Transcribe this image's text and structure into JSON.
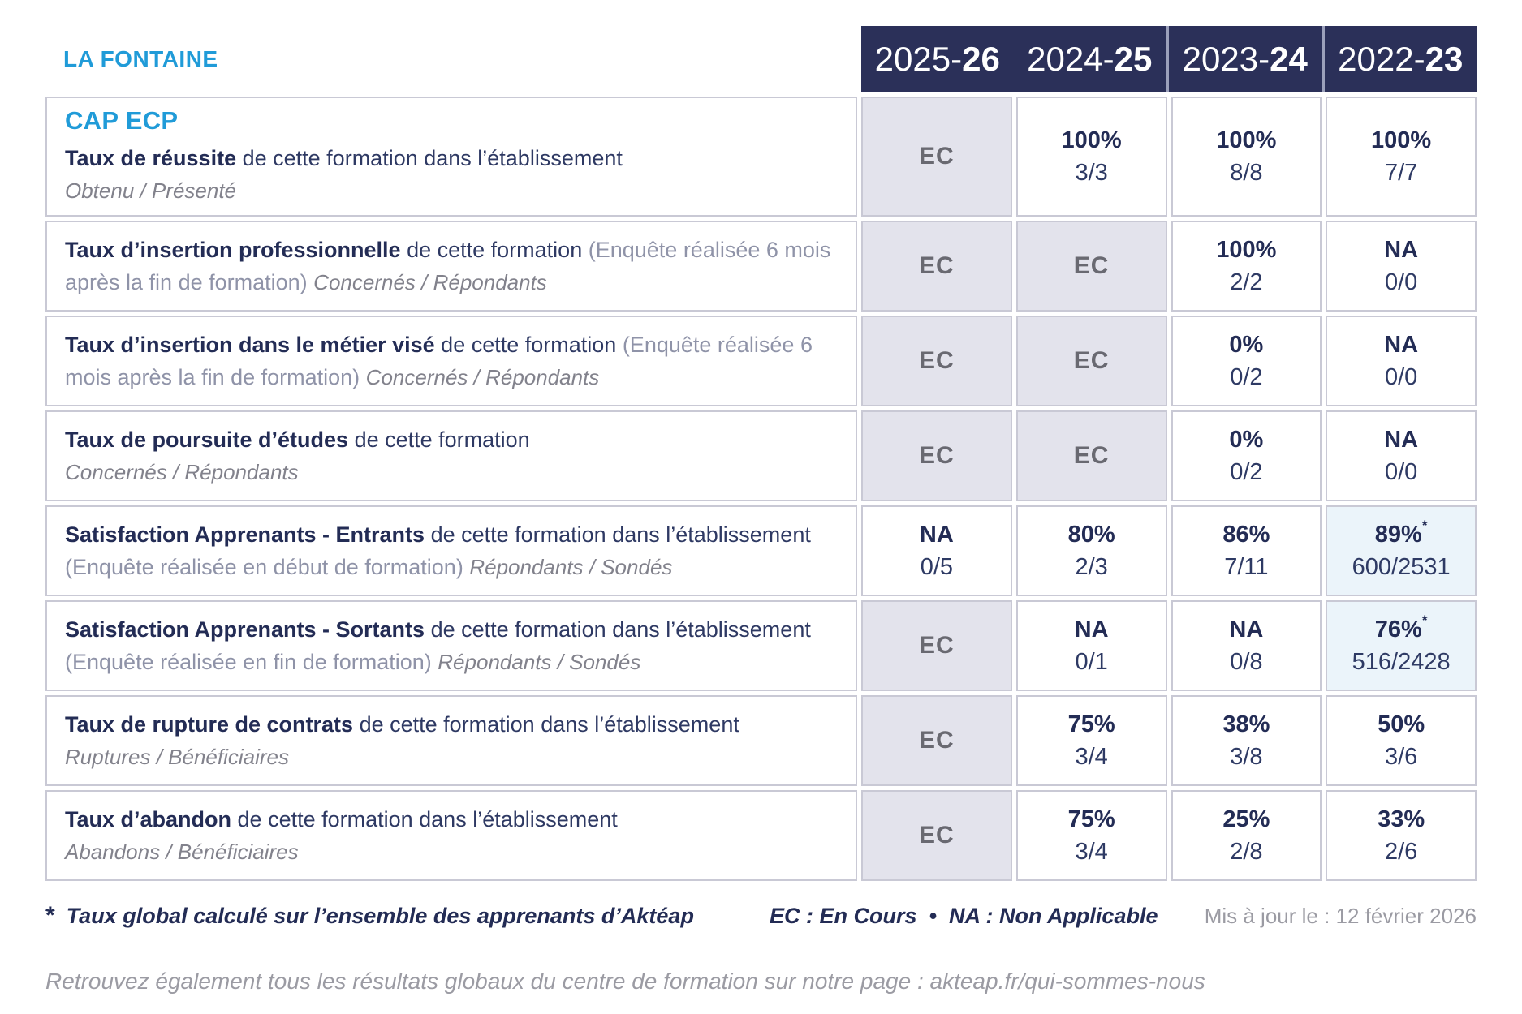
{
  "org": "LA FONTAINE",
  "program": "CAP ECP",
  "colors": {
    "navy": "#2b3059",
    "accent_blue": "#209bd8",
    "lavender_cell": "#e3e3ec",
    "pale_blue_cell": "#ebf4fa",
    "border_gray": "#c9c9d5"
  },
  "years": [
    {
      "pre": "2025-",
      "bold": "26"
    },
    {
      "pre": "2024-",
      "bold": "25"
    },
    {
      "pre": "2023-",
      "bold": "24"
    },
    {
      "pre": "2022-",
      "bold": "23"
    }
  ],
  "rows": [
    {
      "label_bold": "Taux de réussite",
      "label_rest": "de cette formation dans l’établissement",
      "label_note": "",
      "label_sub": "Obtenu / Présenté",
      "cells": [
        {
          "v": "EC"
        },
        {
          "v": "100%",
          "sub": "3/3"
        },
        {
          "v": "100%",
          "sub": "8/8"
        },
        {
          "v": "100%",
          "sub": "7/7"
        }
      ]
    },
    {
      "label_bold": "Taux d’insertion professionnelle",
      "label_rest": "de cette formation",
      "label_note": "(Enquête réalisée 6 mois après la fin de formation)",
      "label_sub": "Concernés / Répondants",
      "cells": [
        {
          "v": "EC"
        },
        {
          "v": "EC"
        },
        {
          "v": "100%",
          "sub": "2/2"
        },
        {
          "v": "NA",
          "sub": "0/0"
        }
      ]
    },
    {
      "label_bold": "Taux d’insertion dans le métier visé",
      "label_rest": "de cette formation",
      "label_note": "(Enquête réalisée 6 mois après la fin de formation)",
      "label_sub": "Concernés / Répondants",
      "cells": [
        {
          "v": "EC"
        },
        {
          "v": "EC"
        },
        {
          "v": "0%",
          "sub": "0/2"
        },
        {
          "v": "NA",
          "sub": "0/0"
        }
      ]
    },
    {
      "label_bold": "Taux de poursuite d’études",
      "label_rest": "de cette formation",
      "label_note": "",
      "label_sub": "Concernés / Répondants",
      "cells": [
        {
          "v": "EC"
        },
        {
          "v": "EC"
        },
        {
          "v": "0%",
          "sub": "0/2"
        },
        {
          "v": "NA",
          "sub": "0/0"
        }
      ]
    },
    {
      "label_bold": "Satisfaction Apprenants - Entrants",
      "label_rest": "de cette formation dans l’établissement",
      "label_note": "(Enquête réalisée en début de formation)",
      "label_sub": "Répondants / Sondés",
      "cells": [
        {
          "v": "NA",
          "sub": "0/5"
        },
        {
          "v": "80%",
          "sub": "2/3"
        },
        {
          "v": "86%",
          "sub": "7/11"
        },
        {
          "v": "89%",
          "star": "*",
          "sub": "600/2531"
        }
      ]
    },
    {
      "label_bold": "Satisfaction Apprenants - Sortants",
      "label_rest": "de cette formation dans l’établissement",
      "label_note": "(Enquête réalisée en fin de formation)",
      "label_sub": "Répondants / Sondés",
      "cells": [
        {
          "v": "EC"
        },
        {
          "v": "NA",
          "sub": "0/1"
        },
        {
          "v": "NA",
          "sub": "0/8"
        },
        {
          "v": "76%",
          "star": "*",
          "sub": "516/2428"
        }
      ]
    },
    {
      "label_bold": "Taux de rupture de contrats",
      "label_rest": "de cette formation dans l’établissement",
      "label_note": "",
      "label_sub": "Ruptures / Bénéficiaires",
      "cells": [
        {
          "v": "EC"
        },
        {
          "v": "75%",
          "sub": "3/4"
        },
        {
          "v": "38%",
          "sub": "3/8"
        },
        {
          "v": "50%",
          "sub": "3/6"
        }
      ]
    },
    {
      "label_bold": "Taux d’abandon",
      "label_rest": "de cette formation dans l’établissement",
      "label_note": "",
      "label_sub": "Abandons / Bénéficiaires",
      "cells": [
        {
          "v": "EC"
        },
        {
          "v": "75%",
          "sub": "3/4"
        },
        {
          "v": "25%",
          "sub": "2/8"
        },
        {
          "v": "33%",
          "sub": "2/6"
        }
      ]
    }
  ],
  "footer": {
    "star": "*",
    "footnote": "Taux global calculé sur l’ensemble des apprenants d’Aktéap",
    "legend": "EC : En Cours  •  NA : Non Applicable",
    "updated": "Mis à jour le : 12 février 2026"
  },
  "bottom_note": "Retrouvez également tous les résultats globaux du centre de formation sur notre page : akteap.fr/qui-sommes-nous"
}
